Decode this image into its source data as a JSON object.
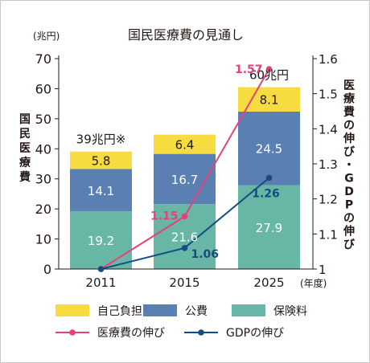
{
  "chart_data": {
    "type": "bar",
    "title": "国民医療費の見通し",
    "categories": [
      "2011",
      "2015",
      "2025"
    ],
    "x_unit": "(年度)",
    "y_left": {
      "label": "国民医療費",
      "unit": "(兆円)",
      "ylim": [
        0,
        70
      ],
      "ticks": [
        "0",
        "10",
        "20",
        "30",
        "40",
        "50",
        "60",
        "70"
      ]
    },
    "y_right": {
      "label": "医療費の伸び・GDPの伸び",
      "ylim": [
        1,
        1.6
      ],
      "ticks": [
        "1",
        "1.1",
        "1.2",
        "1.3",
        "1.4",
        "1.5",
        "1.6"
      ]
    },
    "series": [
      {
        "name": "保険料",
        "type": "bar",
        "axis": "left",
        "values": [
          19.2,
          21.6,
          27.9
        ],
        "labels": [
          "19.2",
          "21.6",
          "27.9"
        ]
      },
      {
        "name": "公費",
        "type": "bar",
        "axis": "left",
        "values": [
          14.1,
          16.7,
          24.5
        ],
        "labels": [
          "14.1",
          "16.7",
          "24.5"
        ]
      },
      {
        "name": "自己負担",
        "type": "bar",
        "axis": "left",
        "values": [
          5.8,
          6.4,
          8.1
        ],
        "labels": [
          "5.8",
          "6.4",
          "8.1"
        ]
      },
      {
        "name": "医療費の伸び",
        "type": "line",
        "axis": "right",
        "values": [
          1.0,
          1.15,
          1.57
        ],
        "labels": [
          "",
          "1.15",
          "1.57"
        ]
      },
      {
        "name": "GDPの伸び",
        "type": "line",
        "axis": "right",
        "values": [
          1.0,
          1.06,
          1.26
        ],
        "labels": [
          "",
          "1.06",
          "1.26"
        ]
      }
    ],
    "totals": [
      "39兆円※",
      "",
      "60兆円"
    ],
    "colors": {
      "保険料": "#68b7a6",
      "公費": "#5a7fb3",
      "自己負担": "#f6dc3f",
      "医療費の伸び": "#e5427c",
      "GDPの伸び": "#154d81"
    },
    "legend_position": "bottom",
    "grid": false
  }
}
